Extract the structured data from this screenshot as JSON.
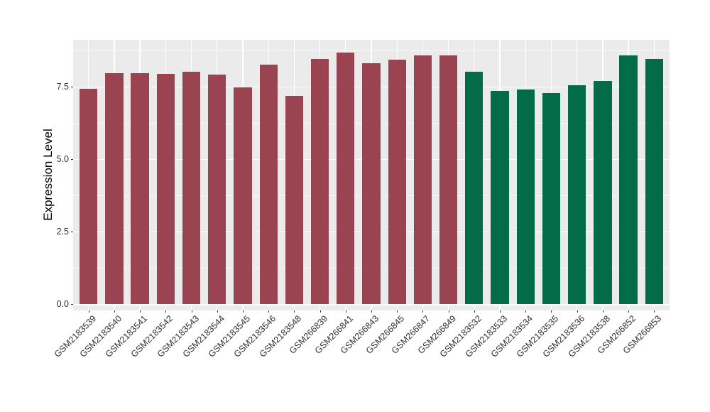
{
  "chart_data": {
    "type": "bar",
    "title": "",
    "xlabel": "",
    "ylabel": "Expression Level",
    "ylim": [
      0,
      9.1
    ],
    "yticks": [
      0,
      2.5,
      5,
      7.5
    ],
    "ytick_labels": [
      "0.0",
      "2.5",
      "5.0",
      "7.5"
    ],
    "yminor": [
      1.25,
      3.75,
      6.25,
      8.75
    ],
    "grid": "white major and minor horizontal lines plus vertical major lines on grey panel",
    "legend_position": "none",
    "x_label_rotation_deg": 45,
    "panel_bg": "#EBEBEB",
    "grid_color": "#FFFFFF",
    "axis_text_color": "#303030",
    "group_colors": {
      "left_group": "#9A4351",
      "right_group": "#046B49"
    },
    "categories": [
      "GSM2183539",
      "GSM2183540",
      "GSM2183541",
      "GSM2183542",
      "GSM2183543",
      "GSM2183544",
      "GSM2183545",
      "GSM2183546",
      "GSM2183548",
      "GSM266839",
      "GSM266841",
      "GSM266843",
      "GSM266845",
      "GSM266847",
      "GSM266849",
      "GSM2183532",
      "GSM2183533",
      "GSM2183534",
      "GSM2183535",
      "GSM2183536",
      "GSM2183538",
      "GSM266852",
      "GSM266853"
    ],
    "values": [
      7.42,
      7.96,
      7.96,
      7.94,
      8.0,
      7.9,
      7.47,
      8.25,
      7.17,
      8.45,
      8.67,
      8.29,
      8.42,
      8.57,
      8.58,
      8.01,
      7.34,
      7.4,
      7.27,
      7.54,
      7.7,
      8.57,
      8.44
    ],
    "colors": [
      "#9A4351",
      "#9A4351",
      "#9A4351",
      "#9A4351",
      "#9A4351",
      "#9A4351",
      "#9A4351",
      "#9A4351",
      "#9A4351",
      "#9A4351",
      "#9A4351",
      "#9A4351",
      "#9A4351",
      "#9A4351",
      "#9A4351",
      "#046B49",
      "#046B49",
      "#046B49",
      "#046B49",
      "#046B49",
      "#046B49",
      "#046B49",
      "#046B49"
    ]
  }
}
